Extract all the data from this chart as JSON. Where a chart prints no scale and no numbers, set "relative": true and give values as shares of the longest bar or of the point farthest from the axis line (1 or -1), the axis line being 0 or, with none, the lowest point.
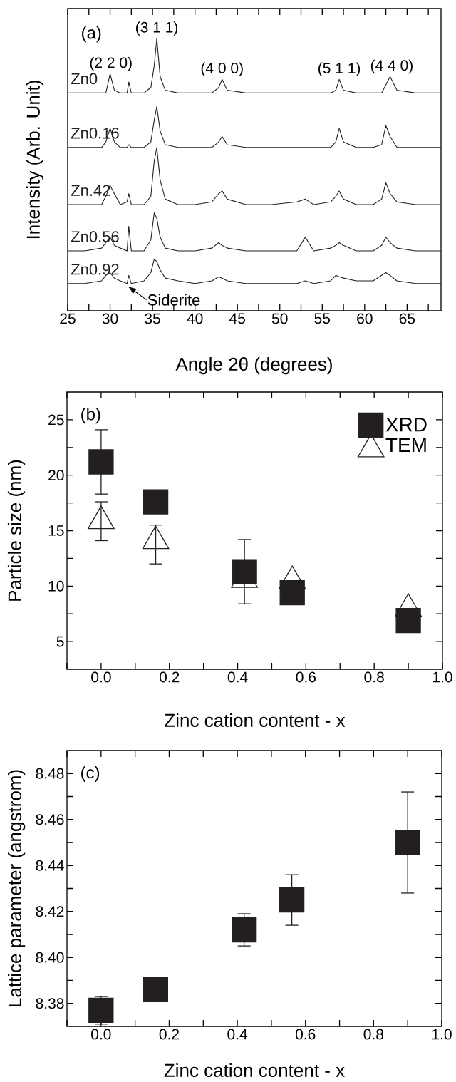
{
  "chart_data": [
    {
      "type": "line",
      "relative": true,
      "xlabel": "Angle 2θ (degrees)",
      "ylabel": "Intensity (Arb. Unit)",
      "xlim": [
        25,
        69
      ],
      "tick_labels": "x",
      "xticks": [
        25,
        {
          "value": 27.5,
          "label": null
        },
        30,
        {
          "value": 32.5,
          "label": null
        },
        35,
        {
          "value": 37.5,
          "label": null
        },
        40,
        {
          "value": 42.5,
          "label": null
        },
        45,
        {
          "value": 47.5,
          "label": null
        },
        50,
        {
          "value": 52.5,
          "label": null
        },
        55,
        {
          "value": 57.5,
          "label": null
        },
        60,
        {
          "value": 62.5,
          "label": null
        },
        65,
        {
          "value": 67.5,
          "label": null
        }
      ],
      "annotations": [
        "(a)",
        {
          "text": "(2 2 0)",
          "x": 30.1,
          "y": 0.87
        },
        {
          "text": "(3 1 1)",
          "x": 35.5,
          "y": 1.0
        },
        {
          "text": "(4 0 0)",
          "x": 43.2,
          "y": 0.85
        },
        {
          "text": "(5 1 1)",
          "x": 57,
          "y": 0.85
        },
        {
          "text": "(4 4 0)",
          "x": 63.2,
          "y": 0.86
        },
        {
          "text": "Siderite",
          "x": 32.1,
          "y": 0.09
        }
      ],
      "x": [
        25,
        27,
        29,
        29.5,
        30,
        30.5,
        31.2,
        32,
        32.2,
        32.5,
        34,
        34.8,
        35.2,
        35.5,
        35.9,
        36.5,
        38,
        40,
        42,
        42.8,
        43.2,
        43.8,
        46,
        49,
        52,
        53,
        54,
        56,
        56.6,
        57,
        57.5,
        59,
        61,
        62,
        62.5,
        63,
        63.8,
        66,
        69
      ],
      "series": [
        {
          "name": "Zn0",
          "color": "#231f20",
          "values": [
            0.8,
            0.8,
            0.8,
            0.8,
            0.87,
            0.81,
            0.8,
            0.8,
            0.84,
            0.8,
            0.8,
            0.82,
            0.9,
            1.0,
            0.86,
            0.81,
            0.8,
            0.8,
            0.8,
            0.82,
            0.85,
            0.81,
            0.8,
            0.8,
            0.8,
            0.8,
            0.8,
            0.8,
            0.81,
            0.85,
            0.81,
            0.8,
            0.8,
            0.8,
            0.83,
            0.86,
            0.81,
            0.8,
            0.8
          ]
        },
        {
          "name": "Zn0.16",
          "color": "#231f20",
          "values": [
            0.6,
            0.6,
            0.6,
            0.62,
            0.67,
            0.62,
            0.6,
            0.6,
            0.61,
            0.6,
            0.6,
            0.62,
            0.7,
            0.75,
            0.66,
            0.61,
            0.6,
            0.6,
            0.6,
            0.62,
            0.64,
            0.61,
            0.6,
            0.6,
            0.6,
            0.6,
            0.6,
            0.6,
            0.62,
            0.67,
            0.62,
            0.6,
            0.6,
            0.61,
            0.68,
            0.64,
            0.6,
            0.6,
            0.6
          ]
        },
        {
          "name": "Zn.42",
          "color": "#231f20",
          "values": [
            0.39,
            0.39,
            0.39,
            0.42,
            0.46,
            0.43,
            0.39,
            0.4,
            0.43,
            0.39,
            0.39,
            0.42,
            0.55,
            0.6,
            0.48,
            0.41,
            0.39,
            0.39,
            0.4,
            0.43,
            0.44,
            0.41,
            0.39,
            0.39,
            0.4,
            0.41,
            0.39,
            0.4,
            0.42,
            0.44,
            0.41,
            0.39,
            0.39,
            0.41,
            0.47,
            0.43,
            0.4,
            0.39,
            0.39
          ]
        },
        {
          "name": "Zn0.56",
          "color": "#231f20",
          "values": [
            0.22,
            0.22,
            0.23,
            0.25,
            0.27,
            0.24,
            0.23,
            0.22,
            0.31,
            0.22,
            0.22,
            0.26,
            0.36,
            0.34,
            0.27,
            0.23,
            0.22,
            0.22,
            0.23,
            0.25,
            0.24,
            0.23,
            0.22,
            0.22,
            0.22,
            0.27,
            0.22,
            0.23,
            0.24,
            0.25,
            0.24,
            0.22,
            0.22,
            0.24,
            0.27,
            0.25,
            0.23,
            0.22,
            0.22
          ]
        },
        {
          "name": "Zn0.92",
          "color": "#231f20",
          "values": [
            0.1,
            0.1,
            0.11,
            0.13,
            0.14,
            0.12,
            0.11,
            0.1,
            0.13,
            0.1,
            0.11,
            0.14,
            0.19,
            0.18,
            0.15,
            0.12,
            0.11,
            0.1,
            0.11,
            0.125,
            0.12,
            0.11,
            0.1,
            0.1,
            0.1,
            0.11,
            0.1,
            0.11,
            0.13,
            0.125,
            0.12,
            0.11,
            0.11,
            0.13,
            0.14,
            0.13,
            0.11,
            0.1,
            0.1
          ]
        }
      ]
    },
    {
      "type": "scatter",
      "xlabel": "Zinc cation content - x",
      "ylabel": "Particle size (nm)",
      "legend": "top right",
      "annotations": [
        "(b)"
      ],
      "xlim": [
        -0.1,
        1.0
      ],
      "ylim": [
        2.5,
        27.5
      ],
      "xticks": [
        {
          "value": -0.1,
          "label": null
        },
        {
          "value": 0,
          "label": "0.0"
        },
        {
          "value": 0.1,
          "label": null
        },
        0.2,
        {
          "value": 0.3,
          "label": null
        },
        0.4,
        {
          "value": 0.5,
          "label": null
        },
        0.6,
        {
          "value": 0.7,
          "label": null
        },
        0.8,
        {
          "value": 0.9,
          "label": null
        },
        {
          "value": 1,
          "label": "1.0"
        }
      ],
      "yticks": [
        5,
        {
          "value": 7.5,
          "label": null
        },
        10,
        {
          "value": 12.5,
          "label": null
        },
        15,
        {
          "value": 17.5,
          "label": null
        },
        20,
        {
          "value": 22.5,
          "label": null
        },
        25
      ],
      "x": [
        0,
        0.16,
        0.42,
        0.56,
        0.9
      ],
      "series": [
        {
          "name": "XRD",
          "color": "#231f20",
          "marker": "square",
          "values": [
            21.2,
            17.6,
            11.3,
            9.4,
            6.9
          ],
          "errors": [
            2.9,
            null,
            2.9,
            null,
            null
          ]
        },
        {
          "name": "TEM",
          "color": "#231f20",
          "marker": "triangle",
          "values": [
            16.2,
            14.4,
            10.9,
            10.8,
            8.3
          ],
          "errors": [
            [
              14.1,
              17.6
            ],
            [
              12.0,
              15.5
            ],
            null,
            null,
            null
          ]
        }
      ]
    },
    {
      "type": "scatter",
      "xlabel": "Zinc cation content - x",
      "ylabel": "Lattice parameter (angstrom)",
      "annotations": [
        "(c)"
      ],
      "xlim": [
        -0.1,
        1.0
      ],
      "ylim": [
        8.37,
        8.49
      ],
      "xticks": [
        {
          "value": -0.1,
          "label": null
        },
        {
          "value": 0,
          "label": "0.0"
        },
        {
          "value": 0.1,
          "label": null
        },
        0.2,
        {
          "value": 0.3,
          "label": null
        },
        0.4,
        {
          "value": 0.5,
          "label": null
        },
        0.6,
        {
          "value": 0.7,
          "label": null
        },
        0.8,
        {
          "value": 0.9,
          "label": null
        },
        {
          "value": 1,
          "label": "1.0"
        }
      ],
      "yticks": [
        8.38,
        {
          "value": 8.39,
          "label": null
        },
        {
          "value": 8.4,
          "label": "8.40"
        },
        {
          "value": 8.41,
          "label": null
        },
        8.42,
        {
          "value": 8.43,
          "label": null
        },
        8.44,
        {
          "value": 8.45,
          "label": null
        },
        8.46,
        {
          "value": 8.47,
          "label": null
        },
        8.48
      ],
      "x": [
        0,
        0.16,
        0.42,
        0.56,
        0.9
      ],
      "series": [
        {
          "color": "#231f20",
          "marker": "square",
          "values": [
            8.377,
            8.386,
            8.412,
            8.425,
            8.45
          ],
          "errors": [
            0.006,
            null,
            0.007,
            0.011,
            0.022
          ]
        }
      ]
    }
  ]
}
